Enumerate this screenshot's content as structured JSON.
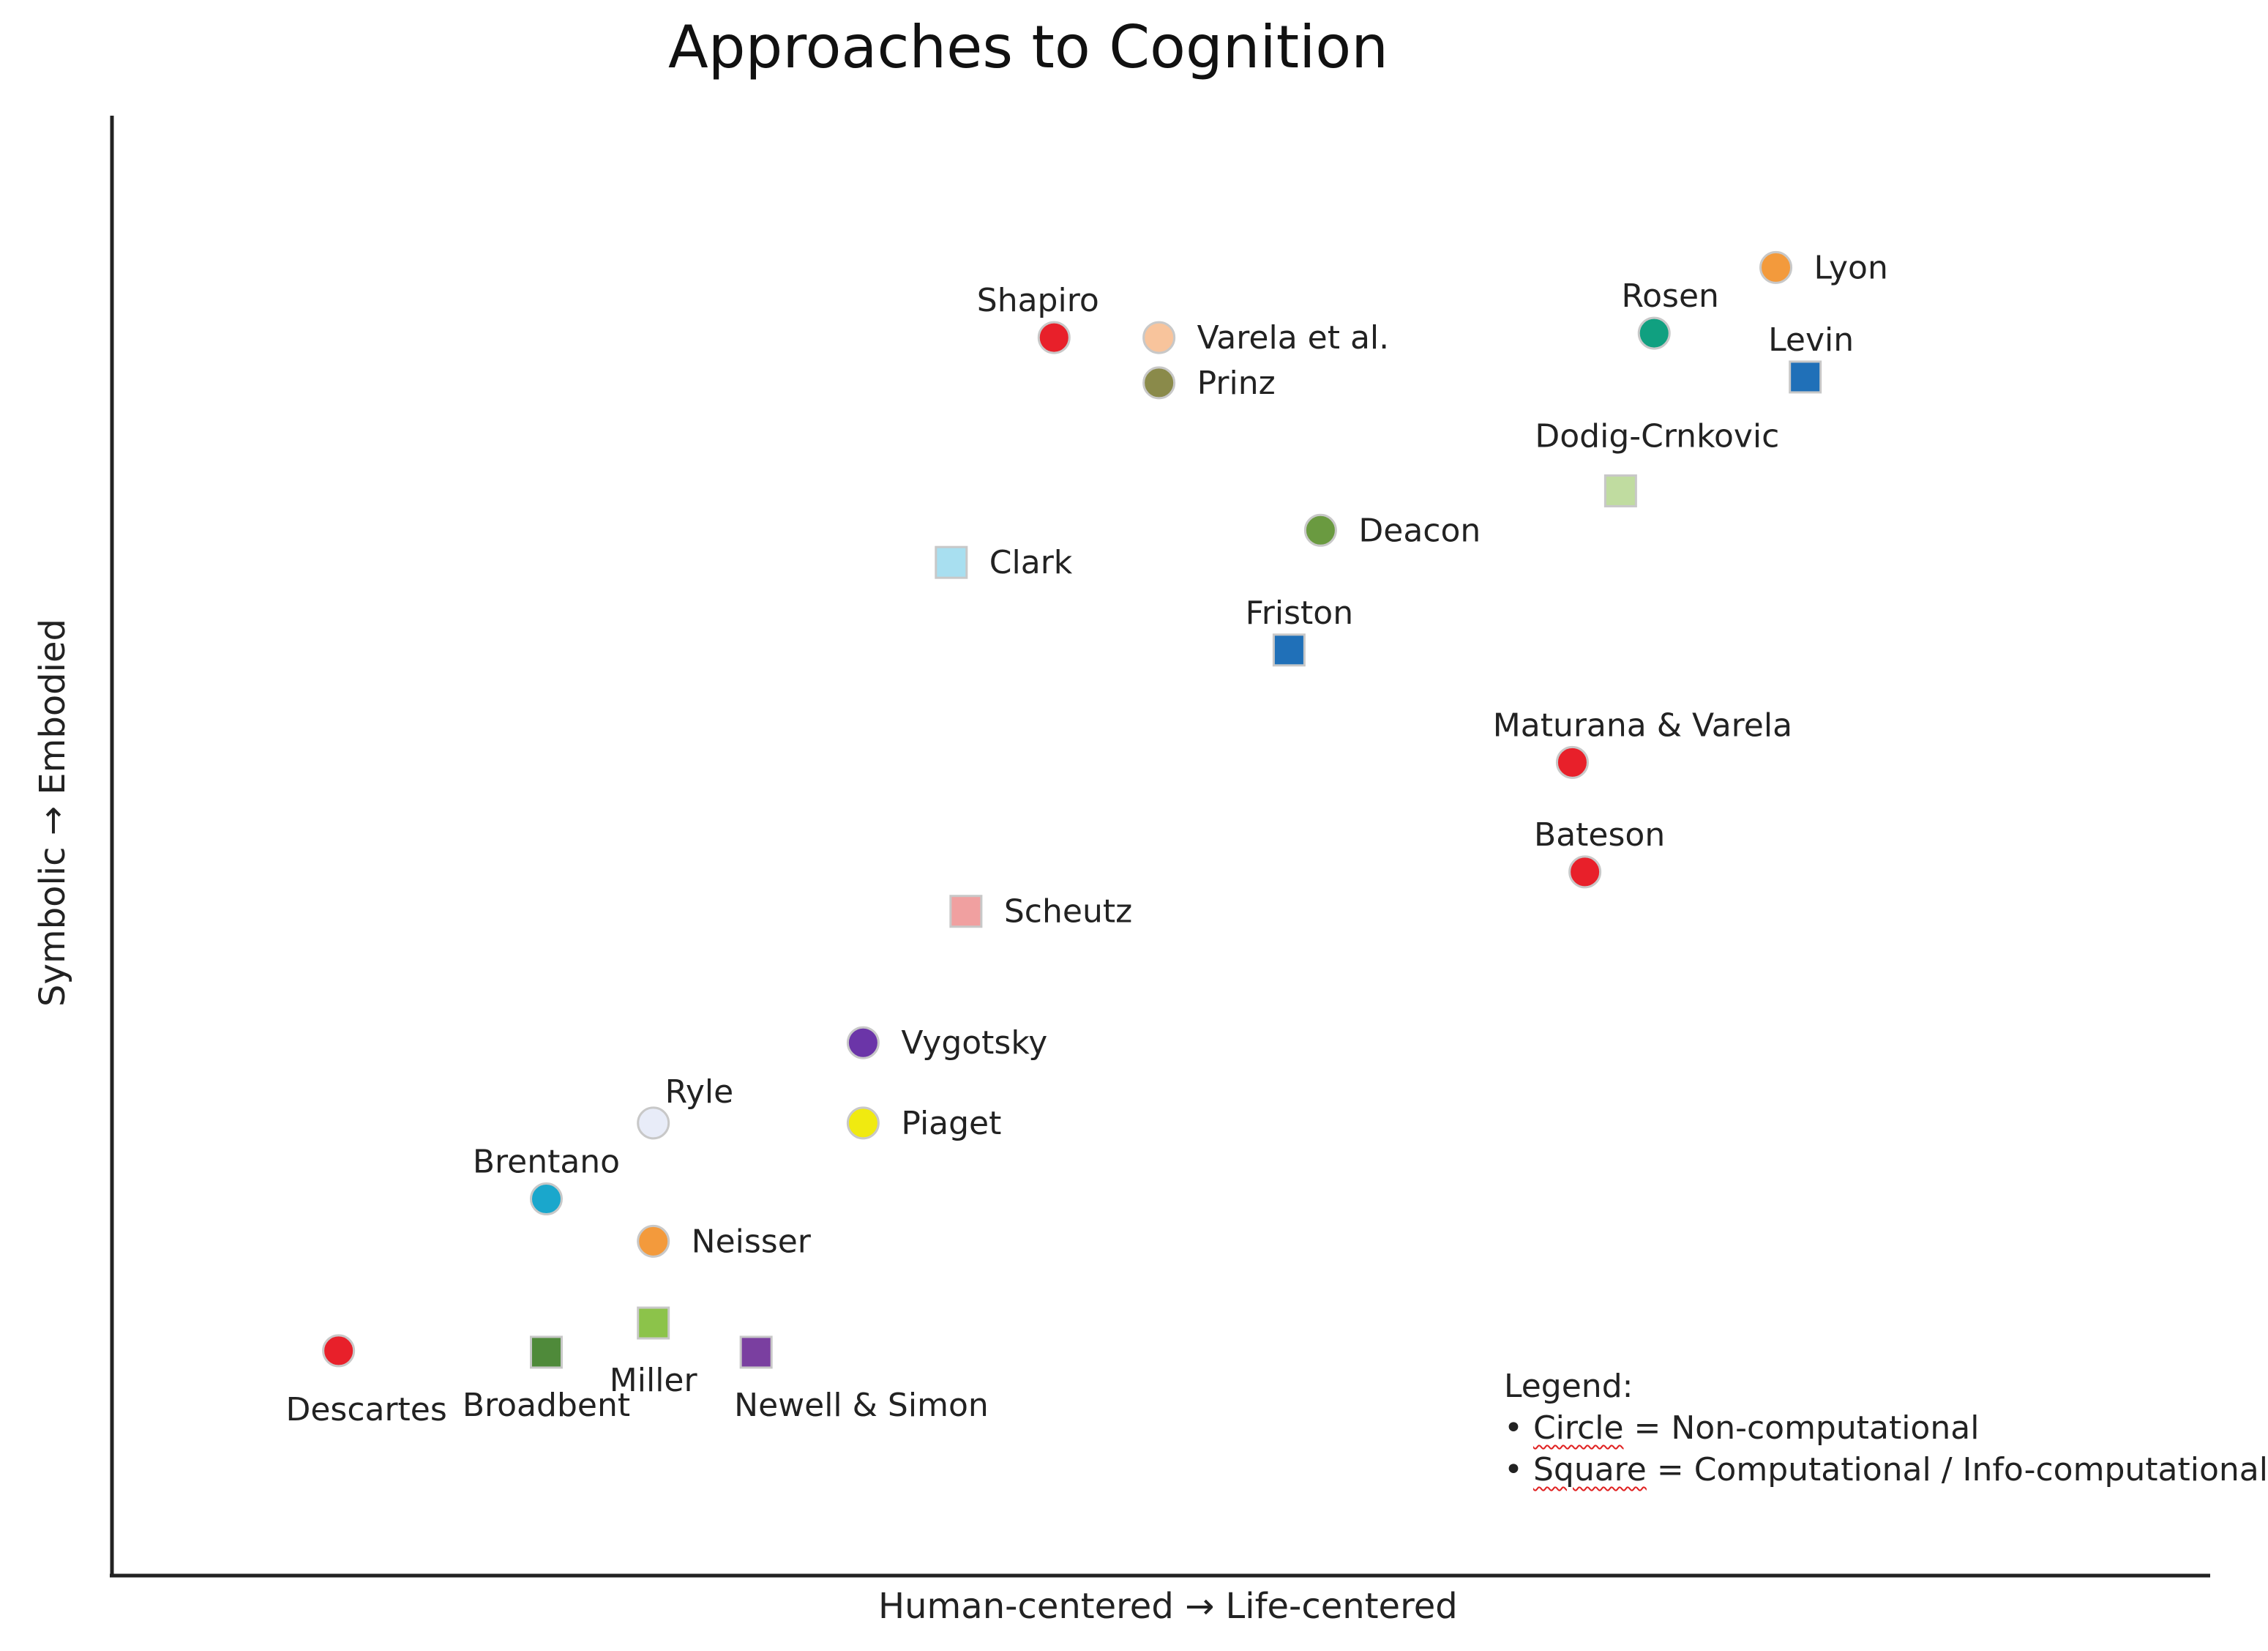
{
  "chart_data": {
    "type": "scatter",
    "title": "Approaches to Cognition",
    "xlabel": "Human-centered  →  Life-centered",
    "ylabel": "Symbolic  →  Embodied",
    "xlim": [
      0,
      100
    ],
    "ylim": [
      0,
      100
    ],
    "grid": false,
    "points": [
      {
        "name": "Descartes",
        "x": 10.8,
        "y": 15.4,
        "shape": "circle",
        "color": "#e8202a",
        "label_pos": "below"
      },
      {
        "name": "Broadbent",
        "x": 20.7,
        "y": 15.3,
        "shape": "square",
        "color": "#4f8a3a",
        "label_pos": "below"
      },
      {
        "name": "Miller",
        "x": 25.8,
        "y": 17.3,
        "shape": "square",
        "color": "#8cc34a",
        "label_pos": "below"
      },
      {
        "name": "Newell & Simon",
        "x": 30.7,
        "y": 15.3,
        "shape": "square",
        "color": "#7a3fa0",
        "label_pos": "below-right"
      },
      {
        "name": "Neisser",
        "x": 25.8,
        "y": 22.9,
        "shape": "circle",
        "color": "#f39a3c",
        "label_pos": "right"
      },
      {
        "name": "Brentano",
        "x": 20.7,
        "y": 25.8,
        "shape": "circle",
        "color": "#1aa7cc",
        "label_pos": "above"
      },
      {
        "name": "Ryle",
        "x": 25.8,
        "y": 31.0,
        "shape": "circle",
        "color": "#e8ecf8",
        "label_pos": "above-right"
      },
      {
        "name": "Piaget",
        "x": 35.8,
        "y": 31.0,
        "shape": "circle",
        "color": "#f0ea10",
        "label_pos": "right"
      },
      {
        "name": "Vygotsky",
        "x": 35.8,
        "y": 36.5,
        "shape": "circle",
        "color": "#6b35a8",
        "label_pos": "right"
      },
      {
        "name": "Scheutz",
        "x": 40.7,
        "y": 45.5,
        "shape": "square",
        "color": "#f0a0a0",
        "label_pos": "right"
      },
      {
        "name": "Clark",
        "x": 40.0,
        "y": 69.4,
        "shape": "square",
        "color": "#a8dff0",
        "label_pos": "right"
      },
      {
        "name": "Shapiro",
        "x": 44.9,
        "y": 84.8,
        "shape": "circle",
        "color": "#e8202a",
        "label_pos": "above"
      },
      {
        "name": "Varela et al.",
        "x": 49.9,
        "y": 84.8,
        "shape": "circle",
        "color": "#f8c49c",
        "label_pos": "right"
      },
      {
        "name": "Prinz",
        "x": 49.9,
        "y": 81.7,
        "shape": "circle",
        "color": "#8a8a4a",
        "label_pos": "right"
      },
      {
        "name": "Deacon",
        "x": 57.6,
        "y": 71.6,
        "shape": "circle",
        "color": "#6a9a40",
        "label_pos": "right"
      },
      {
        "name": "Friston",
        "x": 56.1,
        "y": 63.4,
        "shape": "square",
        "color": "#2070b8",
        "label_pos": "above"
      },
      {
        "name": "Maturana & Varela",
        "x": 69.6,
        "y": 55.7,
        "shape": "circle",
        "color": "#e8202a",
        "label_pos": "above"
      },
      {
        "name": "Bateson",
        "x": 70.2,
        "y": 48.2,
        "shape": "circle",
        "color": "#e8202a",
        "label_pos": "above"
      },
      {
        "name": "Dodig-Crnkovic",
        "x": 71.9,
        "y": 74.3,
        "shape": "square",
        "color": "#c0dca0",
        "label_pos": "above"
      },
      {
        "name": "Rosen",
        "x": 73.5,
        "y": 85.1,
        "shape": "circle",
        "color": "#10a080",
        "label_pos": "above"
      },
      {
        "name": "Levin",
        "x": 80.7,
        "y": 82.1,
        "shape": "square",
        "color": "#2070b8",
        "label_pos": "above"
      },
      {
        "name": "Lyon",
        "x": 79.3,
        "y": 89.6,
        "shape": "circle",
        "color": "#f39a3c",
        "label_pos": "right"
      }
    ],
    "legend": {
      "title": "Legend:",
      "items": [
        {
          "bullet": "•",
          "keyword": "Circle",
          "text": " = Non-computational"
        },
        {
          "bullet": "•",
          "keyword": "Square",
          "text": " = Computational / Info-computational"
        }
      ],
      "placement": "bottom-right"
    }
  }
}
